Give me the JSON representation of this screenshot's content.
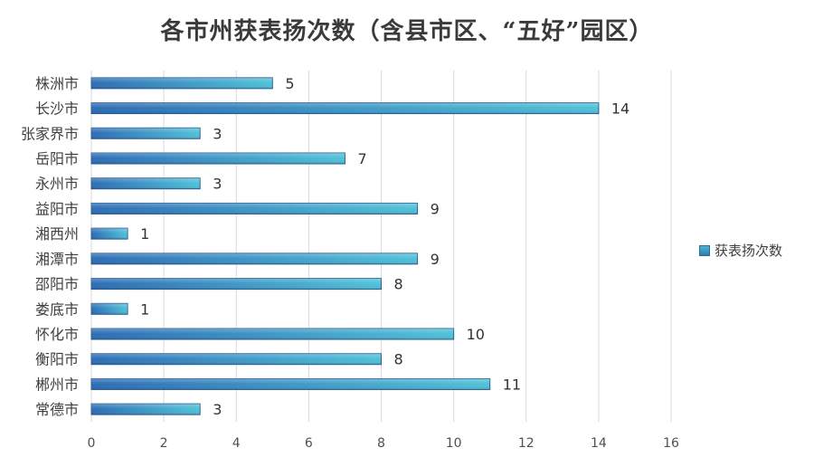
{
  "chart_data": {
    "type": "bar",
    "orientation": "horizontal",
    "title": "各市州获表扬次数（含县市区、“五好”园区）",
    "categories": [
      "株洲市",
      "长沙市",
      "张家界市",
      "岳阳市",
      "永州市",
      "益阳市",
      "湘西州",
      "湘潭市",
      "邵阳市",
      "娄底市",
      "怀化市",
      "衡阳市",
      "郴州市",
      "常德市"
    ],
    "series": [
      {
        "name": "获表扬次数",
        "values": [
          5,
          14,
          3,
          7,
          3,
          9,
          1,
          9,
          8,
          1,
          10,
          8,
          11,
          3
        ]
      }
    ],
    "xlim": [
      0,
      16
    ],
    "xticks": [
      "0",
      "2",
      "4",
      "6",
      "8",
      "10",
      "12",
      "14",
      "16"
    ],
    "grid": true,
    "legend_position": "right",
    "data_labels": true,
    "colors": {
      "bar_start": "#2d6db5",
      "bar_end": "#50c2d8",
      "bar_edge": "#2a5f96",
      "grid": "#d9d9d9"
    }
  }
}
